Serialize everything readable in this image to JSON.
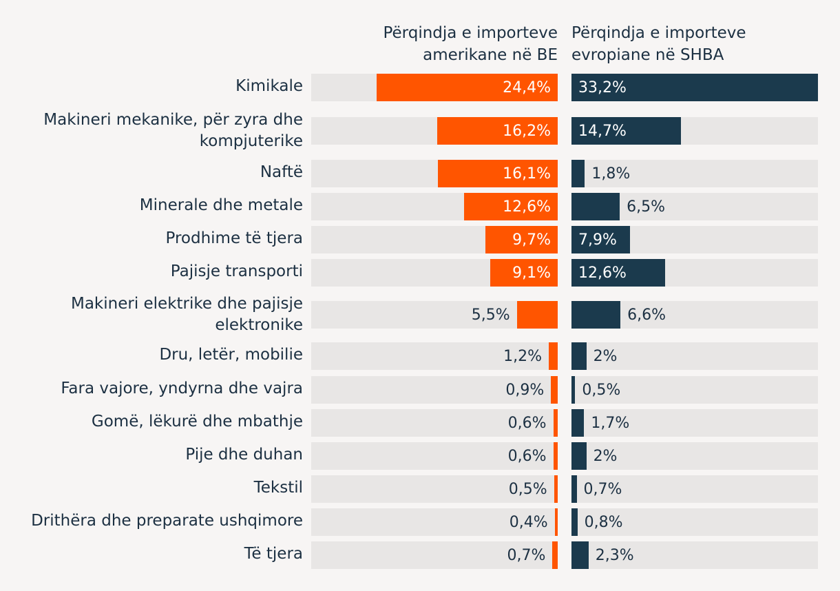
{
  "chart_data": {
    "type": "bar",
    "orientation": "horizontal",
    "layout": "two mirrored panels",
    "categories": [
      "Kimikale",
      "Makineri mekanike, për zyra dhe kompjuterike",
      "Naftë",
      "Minerale dhe metale",
      "Prodhime të tjera",
      "Pajisje transporti",
      "Makineri elektrike dhe pajisje elektronike",
      "Dru, letër, mobilie",
      "Fara vajore, yndyrna dhe vajra",
      "Gomë, lëkurë dhe mbathje",
      "Pije dhe duhan",
      "Tekstil",
      "Drithëra dhe preparate ushqimore",
      "Të tjera"
    ],
    "series": [
      {
        "name": "Përqindja e importeve amerikane në BE",
        "color": "#ff5500",
        "values": [
          24.4,
          16.2,
          16.1,
          12.6,
          9.7,
          9.1,
          5.5,
          1.2,
          0.9,
          0.6,
          0.6,
          0.5,
          0.4,
          0.7
        ],
        "labels": [
          "24,4%",
          "16,2%",
          "16,1%",
          "12,6%",
          "9,7%",
          "9,1%",
          "5,5%",
          "1,2%",
          "0,9%",
          "0,6%",
          "0,6%",
          "0,5%",
          "0,4%",
          "0,7%"
        ]
      },
      {
        "name": "Përqindja e importeve evropiane në SHBA",
        "color": "#1b3a4d",
        "values": [
          33.2,
          14.7,
          1.8,
          6.5,
          7.9,
          12.6,
          6.6,
          2,
          0.5,
          1.7,
          2,
          0.7,
          0.8,
          2.3
        ],
        "labels": [
          "33,2%",
          "14,7%",
          "1,8%",
          "6,5%",
          "7,9%",
          "12,6%",
          "6,6%",
          "2%",
          "0,5%",
          "1,7%",
          "2%",
          "0,7%",
          "0,8%",
          "2,3%"
        ]
      }
    ],
    "xlim": [
      0,
      33.2
    ],
    "header_left": "Përqindja e importeve amerikane në BE",
    "header_right": "Përqindja e importeve evropiane në SHBA",
    "track_color": "#e8e6e5"
  }
}
